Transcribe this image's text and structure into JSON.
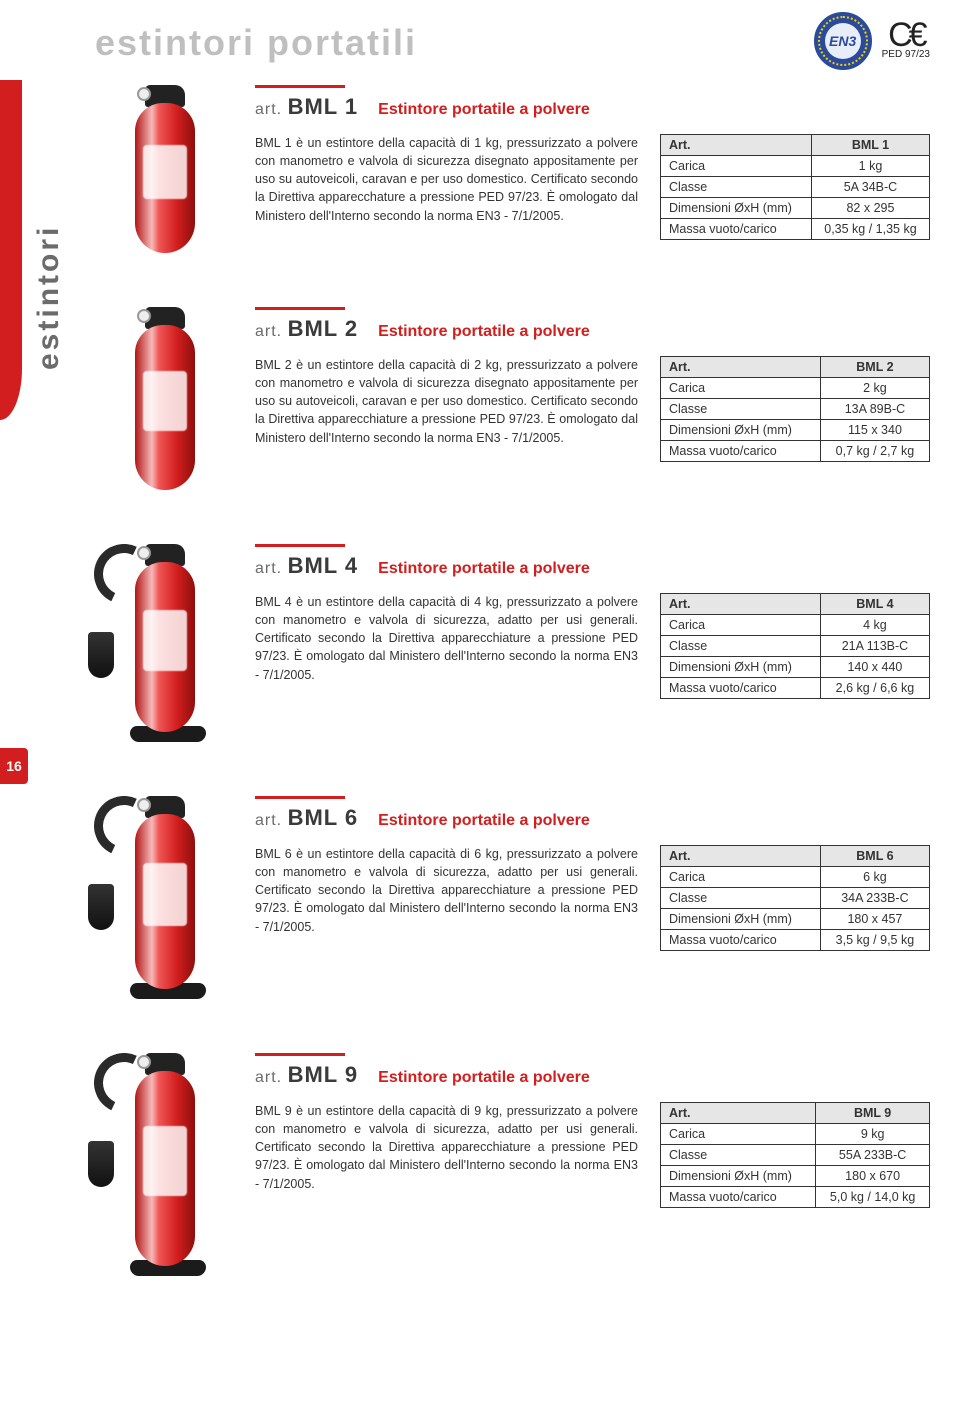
{
  "page": {
    "title": "estintori portatili",
    "side_label": "estintori",
    "page_number": "16",
    "art_prefix": "art.",
    "spec_header_key": "Art.",
    "spec_labels": {
      "carica": "Carica",
      "classe": "Classe",
      "dimensioni": "Dimensioni ØxH (mm)",
      "massa": "Massa vuoto/carico"
    },
    "en3_label": "EN3",
    "ce_label": "C€",
    "ce_sub": "PED 97/23"
  },
  "products": [
    {
      "code": "BML 1",
      "subtitle": "Estintore portatile a polvere",
      "description": "BML 1 è un estintore della capacità di 1 kg, pressurizzato a polvere con manometro e valvola di sicurezza disegnato appositamente per uso su autoveicoli, caravan e per uso domestico. Certificato secondo la Direttiva apparecchature a pressione PED 97/23. È omologato dal Ministero dell'Interno secondo la norma EN3 - 7/1/2005.",
      "spec": {
        "art": "BML 1",
        "carica": "1 kg",
        "classe": "5A 34B-C",
        "dimensioni": "82 x 295",
        "massa": "0,35 kg / 1,35 kg"
      },
      "visual": {
        "body_height": 150,
        "has_hose": false,
        "has_base": false
      }
    },
    {
      "code": "BML 2",
      "subtitle": "Estintore portatile a polvere",
      "description": "BML 2 è un estintore della capacità di 2 kg, pressurizzato a polvere con manometro e valvola di sicurezza disegnato appositamente per uso su autoveicoli, caravan e per uso domestico. Certificato secondo la Direttiva apparecchiature a pressione PED 97/23. È omologato dal Ministero dell'Interno secondo la norma EN3 - 7/1/2005.",
      "spec": {
        "art": "BML 2",
        "carica": "2 kg",
        "classe": "13A 89B-C",
        "dimensioni": "115 x 340",
        "massa": "0,7 kg / 2,7 kg"
      },
      "visual": {
        "body_height": 165,
        "has_hose": false,
        "has_base": false
      }
    },
    {
      "code": "BML 4",
      "subtitle": "Estintore portatile a polvere",
      "description": "BML 4 è un estintore della capacità di 4 kg, pressurizzato a polvere con manometro e valvola di sicurezza, adatto per usi generali. Certificato secondo la Direttiva apparecchiature a pressione PED 97/23. È omologato dal Ministero dell'Interno secondo la norma EN3 - 7/1/2005.",
      "spec": {
        "art": "BML 4",
        "carica": "4 kg",
        "classe": "21A 113B-C",
        "dimensioni": "140 x 440",
        "massa": "2,6 kg / 6,6 kg"
      },
      "visual": {
        "body_height": 170,
        "has_hose": true,
        "has_base": true
      }
    },
    {
      "code": "BML 6",
      "subtitle": "Estintore portatile a polvere",
      "description": "BML 6 è un estintore della capacità di 6 kg, pressurizzato a polvere con manometro e valvola di sicurezza, adatto per usi generali. Certificato secondo la Direttiva apparecchiature a pressione PED 97/23. È omologato dal Ministero dell'Interno secondo la norma EN3 - 7/1/2005.",
      "spec": {
        "art": "BML 6",
        "carica": "6 kg",
        "classe": "34A 233B-C",
        "dimensioni": "180 x 457",
        "massa": "3,5 kg / 9,5 kg"
      },
      "visual": {
        "body_height": 175,
        "has_hose": true,
        "has_base": true
      }
    },
    {
      "code": "BML 9",
      "subtitle": "Estintore portatile a polvere",
      "description": "BML 9 è un estintore della capacità di 9 kg, pressurizzato a polvere con manometro e valvola di sicurezza, adatto per usi generali. Certificato secondo la Direttiva apparecchiature a pressione PED 97/23. È omologato dal Ministero dell'Interno secondo la norma EN3 - 7/1/2005.",
      "spec": {
        "art": "BML 9",
        "carica": "9 kg",
        "classe": "55A 233B-C",
        "dimensioni": "180 x 670",
        "massa": "5,0 kg / 14,0 kg"
      },
      "visual": {
        "body_height": 195,
        "has_hose": true,
        "has_base": true
      }
    }
  ]
}
